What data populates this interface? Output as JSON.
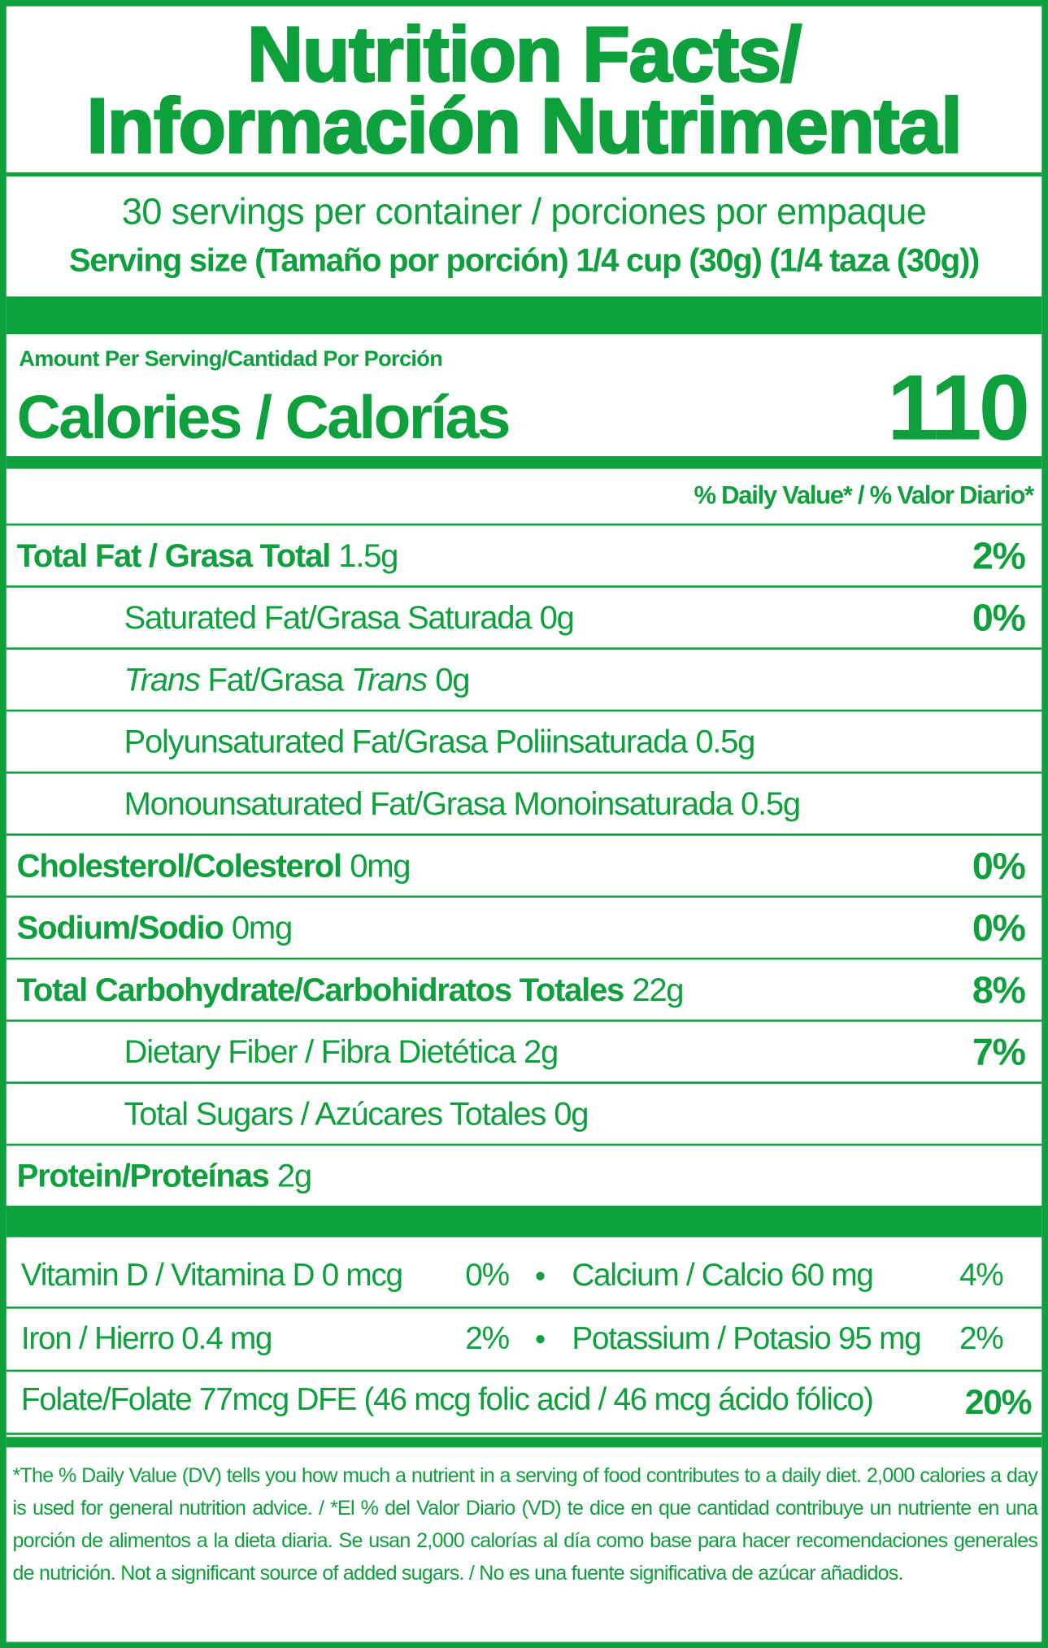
{
  "header": {
    "title_lines": [
      "Nutrition Facts/",
      "Información Nutrimental"
    ],
    "servings": "30 servings per container / porciones por empaque",
    "serving_size": "Serving size (Tamaño por porción) 1/4 cup (30g) (1/4 taza (30g))"
  },
  "calories": {
    "amount_per_serving": "Amount Per Serving/Cantidad Por Porción",
    "label": "Calories / Calorías",
    "value": "110"
  },
  "daily_value_header": "% Daily Value* / % Valor Diario*",
  "nutrients": [
    {
      "name": "Total Fat / Grasa Total",
      "amount": "1.5g",
      "dv": "2%",
      "level": "main"
    },
    {
      "name": "Saturated Fat/Grasa Saturada",
      "amount": "0g",
      "dv": "0%",
      "level": "sub"
    },
    {
      "name": [
        {
          "text": "Trans",
          "italic": true
        },
        {
          "text": " Fat/Grasa ",
          "italic": false
        },
        {
          "text": "Trans",
          "italic": true
        }
      ],
      "amount": "0g",
      "level": "sub"
    },
    {
      "name": "Polyunsaturated Fat/Grasa Poliinsaturada",
      "amount": "0.5g",
      "level": "sub"
    },
    {
      "name": "Monounsaturated Fat/Grasa Monoinsaturada",
      "amount": "0.5g",
      "level": "sub"
    },
    {
      "name": "Cholesterol/Colesterol",
      "amount": "0mg",
      "dv": "0%",
      "level": "main"
    },
    {
      "name": "Sodium/Sodio",
      "amount": "0mg",
      "dv": "0%",
      "level": "main"
    },
    {
      "name": "Total Carbohydrate/Carbohidratos Totales",
      "amount": "22g",
      "dv": "8%",
      "level": "main"
    },
    {
      "name": "Dietary Fiber / Fibra Dietética",
      "amount": "2g",
      "dv": "7%",
      "level": "sub"
    },
    {
      "name": "Total Sugars / Azúcares Totales",
      "amount": "0g",
      "level": "sub"
    },
    {
      "name": "Protein/Proteínas",
      "amount": "2g",
      "level": "main"
    }
  ],
  "vitamins": [
    [
      {
        "name": "Vitamin D / Vitamina D 0 mcg",
        "dv": "0%"
      },
      {
        "name": "Calcium / Calcio 60 mg",
        "dv": "4%"
      }
    ],
    [
      {
        "name": "Iron / Hierro 0.4 mg",
        "dv": "2%"
      },
      {
        "name": "Potassium / Potasio 95 mg",
        "dv": "2%"
      }
    ],
    [
      {
        "name": "Folate/Folate 77mcg DFE (46 mcg folic acid / 46 mcg ácido fólico)",
        "dv": "20%"
      }
    ]
  ],
  "footnote": "*The % Daily Value (DV) tells you how much a nutrient in a serving of food contributes to a daily diet. 2,000 calories a day is used for general nutrition advice. / *El % del Valor Diario (VD) te dice en que cantidad contribuye un nutriente en una porción de alimentos a la dieta diaria. Se usan 2,000 calorías al día como base para hacer recomendaciones generales de nutrición. Not a significant source of added sugars. / No es una fuente significativa de azúcar añadidos."
}
